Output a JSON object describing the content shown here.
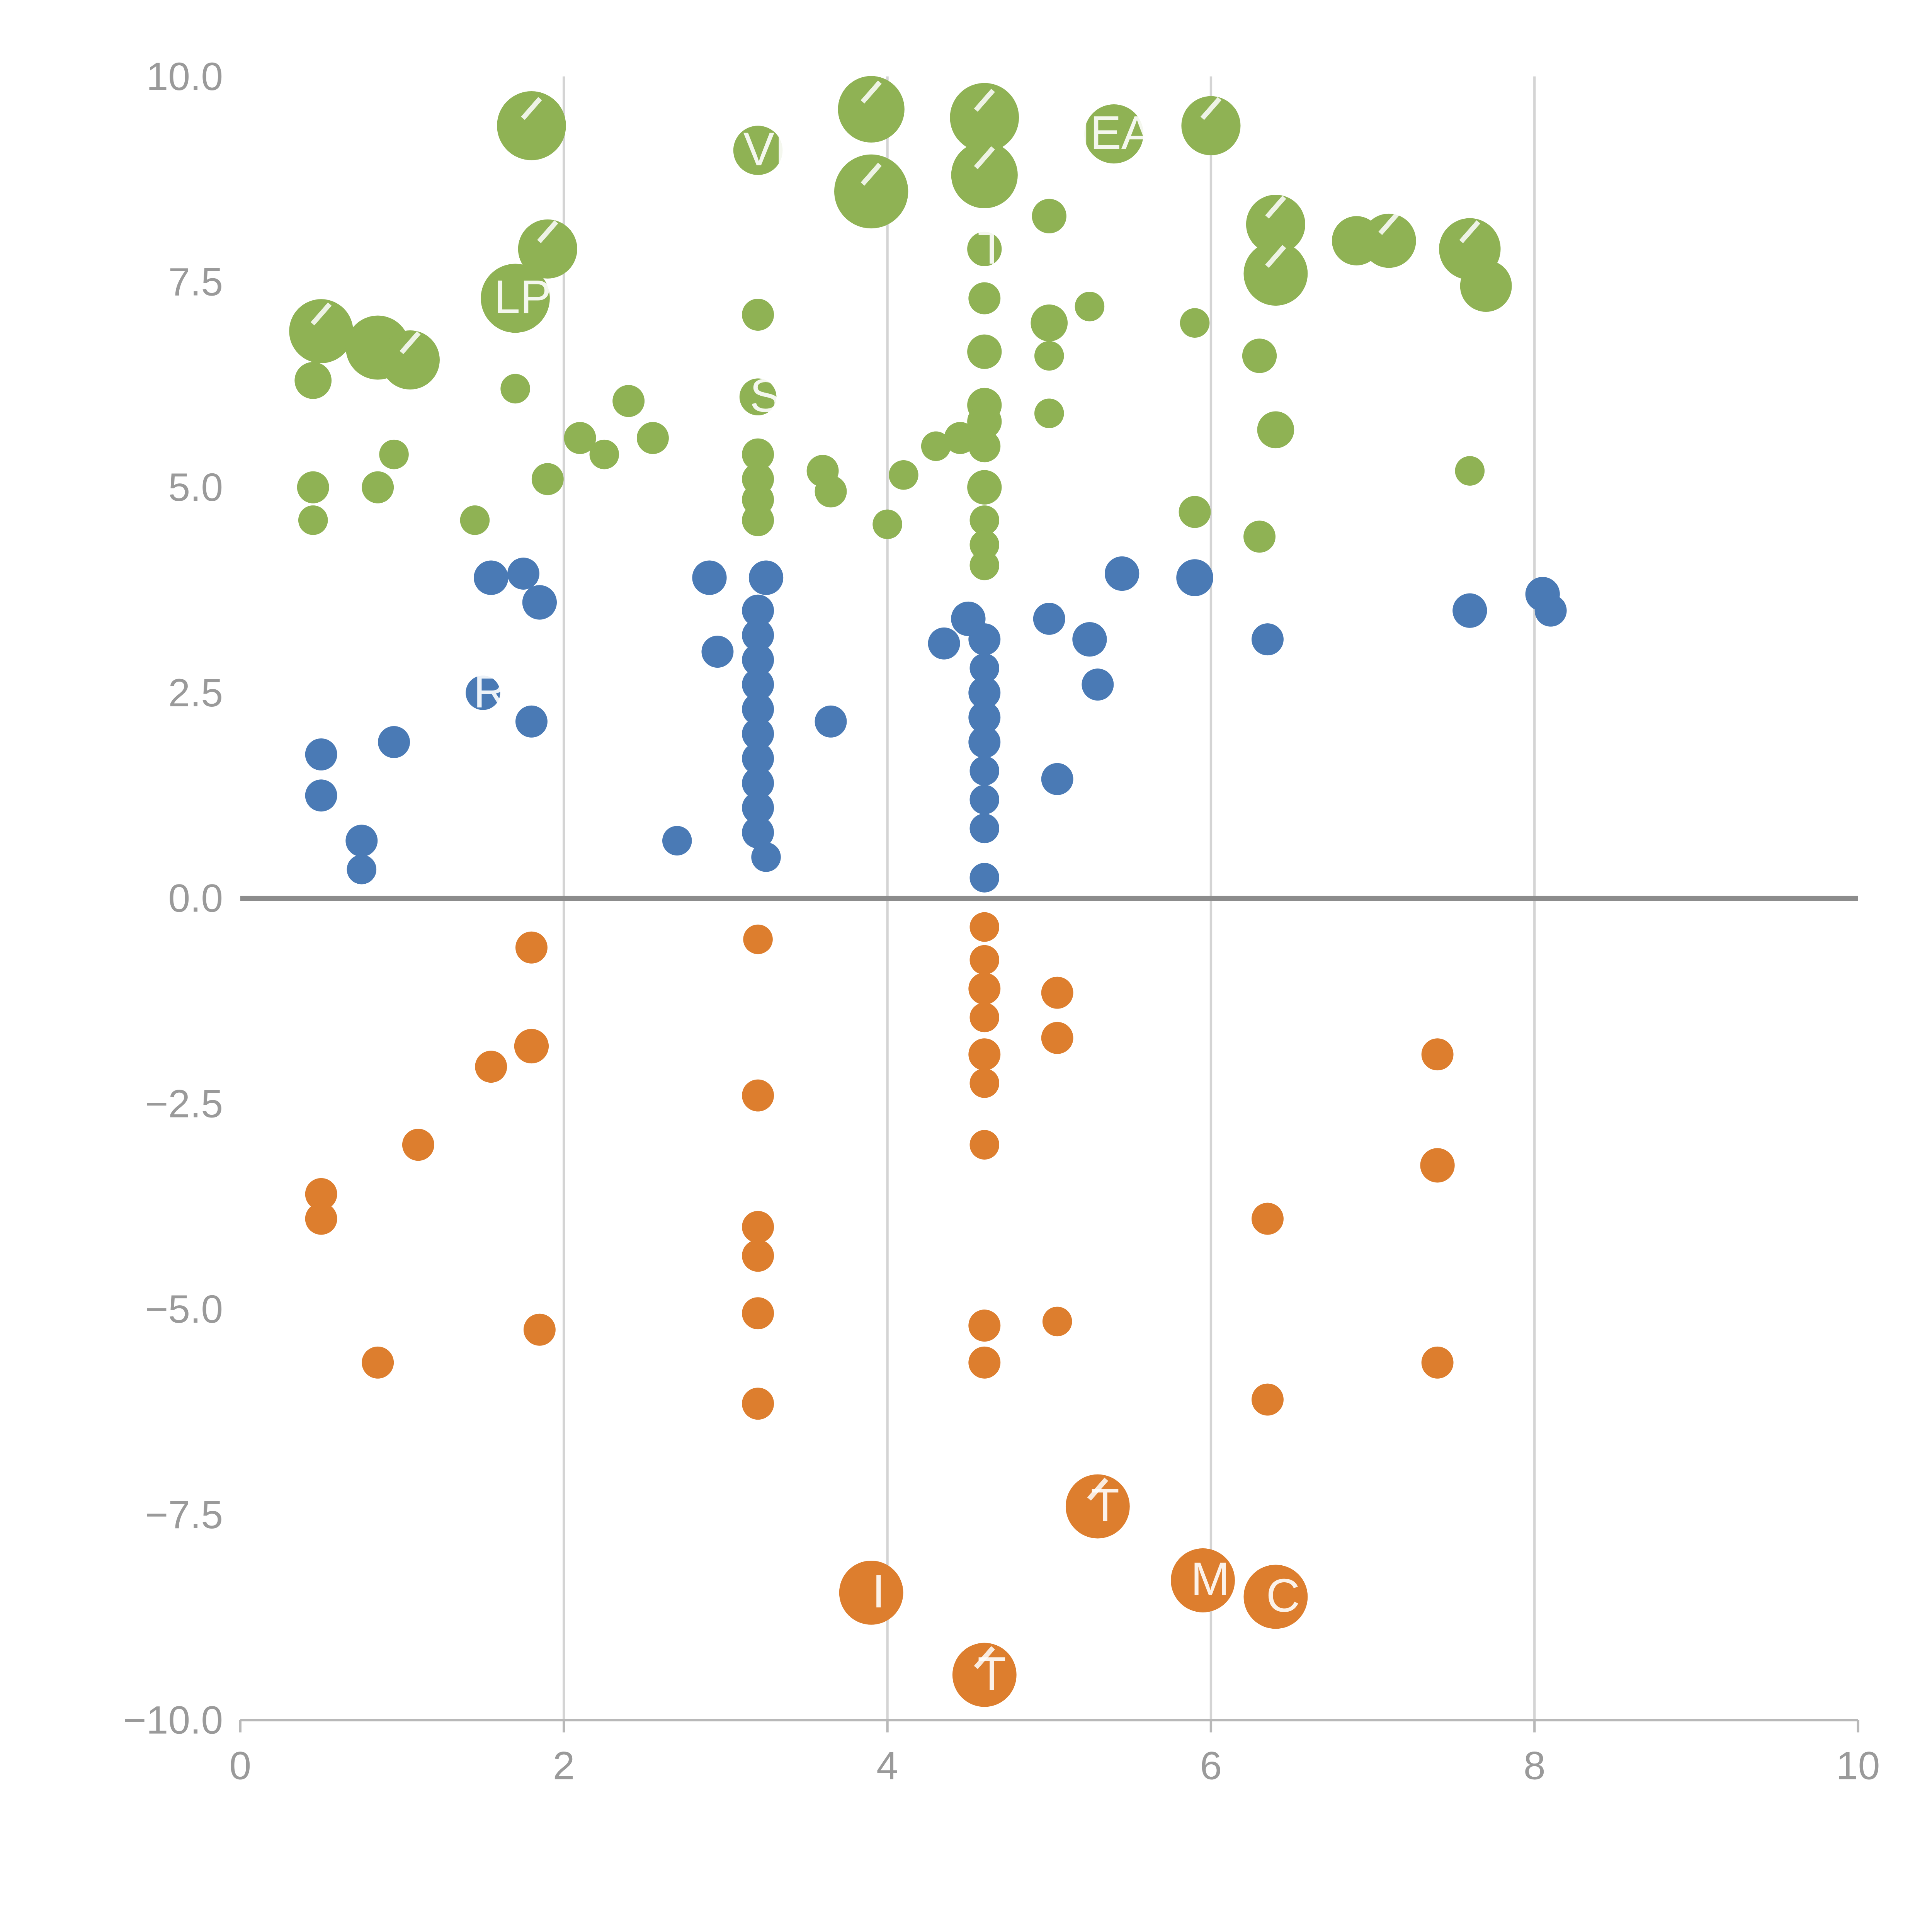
{
  "page": {
    "background": "#ffffff"
  },
  "chart_data": {
    "type": "scatter",
    "subtype": "bubble",
    "title": "",
    "xlabel": "",
    "ylabel": "",
    "xlim": [
      0,
      10
    ],
    "ylim": [
      -10,
      10
    ],
    "grid": true,
    "legend": "none",
    "zero_line_y": 0,
    "x_gridlines": [
      2,
      4,
      6,
      8
    ],
    "x_ticks": [
      {
        "v": 0,
        "t": "0"
      },
      {
        "v": 2,
        "t": "2"
      },
      {
        "v": 4,
        "t": "4"
      },
      {
        "v": 6,
        "t": "6"
      },
      {
        "v": 8,
        "t": "8"
      },
      {
        "v": 10,
        "t": "10"
      }
    ],
    "y_ticks": [
      {
        "v": 10,
        "t": "10.0"
      },
      {
        "v": 7.5,
        "t": "7.5"
      },
      {
        "v": 5,
        "t": "5.0"
      },
      {
        "v": 2.5,
        "t": "2.5"
      },
      {
        "v": 0,
        "t": "0.0"
      },
      {
        "v": -2.5,
        "t": "−2.5"
      },
      {
        "v": -5,
        "t": "−5.0"
      },
      {
        "v": -7.5,
        "t": "−7.5"
      },
      {
        "v": -10,
        "t": "−10.0"
      }
    ],
    "colors": {
      "grid": "#d4d4d4",
      "zero_line": "#8c8c8c",
      "axis_line": "#b8b8b8",
      "tick_label": "#9a9a9a",
      "bubble_label": "#ffffff",
      "series_green": "#8fb254",
      "series_blue": "#4a7ab5",
      "series_orange": "#dd7e2e"
    },
    "point_format": [
      "x",
      "y",
      "radius_px",
      "label",
      "leader_tick"
    ],
    "series": [
      {
        "name": "green",
        "color": "#8fb254",
        "points": [
          [
            1.8,
            9.4,
            28,
            "",
            1
          ],
          [
            3.2,
            9.1,
            20,
            "VI",
            0
          ],
          [
            3.9,
            9.6,
            27,
            "",
            1
          ],
          [
            3.9,
            8.6,
            30,
            "",
            1
          ],
          [
            4.6,
            9.5,
            28,
            "",
            1
          ],
          [
            4.6,
            8.8,
            27,
            "",
            1
          ],
          [
            5.0,
            8.3,
            14
          ],
          [
            5.4,
            9.3,
            24,
            "NEAR",
            0
          ],
          [
            6.0,
            9.4,
            24,
            "",
            1
          ],
          [
            6.4,
            8.2,
            24,
            "",
            1
          ],
          [
            6.4,
            7.6,
            26,
            "",
            1
          ],
          [
            6.9,
            8.0,
            20
          ],
          [
            7.1,
            8.0,
            22,
            "",
            1
          ],
          [
            7.6,
            7.9,
            25,
            "",
            1
          ],
          [
            7.7,
            7.45,
            21
          ],
          [
            1.9,
            7.9,
            24,
            "",
            1
          ],
          [
            1.7,
            7.3,
            28,
            "LP",
            0
          ],
          [
            3.2,
            7.1,
            13
          ],
          [
            4.6,
            7.9,
            14,
            "T",
            0
          ],
          [
            4.6,
            7.3,
            13
          ],
          [
            5.0,
            7.0,
            15
          ],
          [
            5.25,
            7.2,
            12
          ],
          [
            5.9,
            7.0,
            12
          ],
          [
            0.5,
            6.9,
            26,
            "",
            1
          ],
          [
            0.85,
            6.7,
            26
          ],
          [
            1.05,
            6.55,
            24,
            "",
            1
          ],
          [
            0.45,
            6.3,
            15
          ],
          [
            1.7,
            6.2,
            12
          ],
          [
            2.4,
            6.05,
            13
          ],
          [
            4.6,
            6.65,
            14
          ],
          [
            5.0,
            6.6,
            12
          ],
          [
            6.3,
            6.6,
            14
          ],
          [
            4.6,
            6.0,
            14
          ],
          [
            5.0,
            5.9,
            12
          ],
          [
            6.4,
            5.7,
            15
          ],
          [
            0.95,
            5.4,
            12
          ],
          [
            0.85,
            5.0,
            13
          ],
          [
            2.1,
            5.6,
            13
          ],
          [
            2.25,
            5.4,
            12
          ],
          [
            2.55,
            5.6,
            13
          ],
          [
            1.9,
            5.1,
            13
          ],
          [
            3.2,
            6.1,
            15,
            "S",
            0
          ],
          [
            3.2,
            5.4,
            13
          ],
          [
            3.2,
            5.1,
            13
          ],
          [
            3.2,
            4.85,
            13
          ],
          [
            3.2,
            4.6,
            13
          ],
          [
            3.6,
            5.2,
            13
          ],
          [
            3.65,
            4.95,
            13
          ],
          [
            4.1,
            5.15,
            12
          ],
          [
            4.3,
            5.5,
            12
          ],
          [
            4.45,
            5.6,
            13
          ],
          [
            4.6,
            5.8,
            14
          ],
          [
            4.6,
            5.5,
            13
          ],
          [
            4.0,
            4.55,
            12
          ],
          [
            4.6,
            5.0,
            14
          ],
          [
            4.6,
            4.6,
            12
          ],
          [
            4.6,
            4.3,
            12
          ],
          [
            4.6,
            4.05,
            12
          ],
          [
            5.9,
            4.7,
            13
          ],
          [
            6.3,
            4.4,
            13
          ],
          [
            0.45,
            5.0,
            13
          ],
          [
            0.45,
            4.6,
            12
          ],
          [
            1.45,
            4.6,
            12
          ],
          [
            7.6,
            5.2,
            12
          ]
        ]
      },
      {
        "name": "blue",
        "color": "#4a7ab5",
        "points": [
          [
            1.55,
            3.9,
            14
          ],
          [
            1.75,
            3.95,
            13
          ],
          [
            1.85,
            3.6,
            14
          ],
          [
            2.9,
            3.9,
            14
          ],
          [
            3.25,
            3.9,
            14
          ],
          [
            2.95,
            3.0,
            13
          ],
          [
            3.2,
            3.5,
            13
          ],
          [
            3.2,
            3.2,
            13
          ],
          [
            3.2,
            2.9,
            13
          ],
          [
            3.2,
            2.6,
            13
          ],
          [
            3.2,
            2.3,
            13
          ],
          [
            3.2,
            2.0,
            13
          ],
          [
            3.2,
            1.7,
            13
          ],
          [
            3.2,
            1.4,
            13
          ],
          [
            3.2,
            1.1,
            13
          ],
          [
            3.2,
            0.8,
            13
          ],
          [
            3.25,
            0.5,
            12
          ],
          [
            2.7,
            0.7,
            12
          ],
          [
            3.65,
            2.15,
            13
          ],
          [
            4.35,
            3.1,
            13
          ],
          [
            4.5,
            3.4,
            14
          ],
          [
            4.6,
            3.15,
            13
          ],
          [
            4.6,
            2.8,
            12
          ],
          [
            4.6,
            2.5,
            13
          ],
          [
            4.6,
            2.2,
            13
          ],
          [
            4.6,
            1.9,
            13
          ],
          [
            4.6,
            1.55,
            12
          ],
          [
            4.6,
            1.2,
            12
          ],
          [
            4.6,
            0.85,
            12
          ],
          [
            4.6,
            0.25,
            12
          ],
          [
            5.0,
            3.4,
            13
          ],
          [
            5.05,
            1.45,
            13
          ],
          [
            5.25,
            3.15,
            14
          ],
          [
            5.3,
            2.6,
            13
          ],
          [
            5.45,
            3.95,
            14
          ],
          [
            5.9,
            3.9,
            15
          ],
          [
            6.35,
            3.15,
            13
          ],
          [
            7.6,
            3.5,
            14
          ],
          [
            8.05,
            3.7,
            14
          ],
          [
            8.1,
            3.5,
            13
          ],
          [
            1.5,
            2.5,
            14,
            "R",
            0
          ],
          [
            1.8,
            2.15,
            13
          ],
          [
            0.95,
            1.9,
            13
          ],
          [
            0.5,
            1.75,
            13
          ],
          [
            0.5,
            1.25,
            13
          ],
          [
            0.75,
            0.7,
            13
          ],
          [
            0.75,
            0.35,
            12
          ]
        ]
      },
      {
        "name": "orange",
        "color": "#dd7e2e",
        "points": [
          [
            1.8,
            -0.6,
            13
          ],
          [
            3.2,
            -0.5,
            12
          ],
          [
            4.6,
            -0.35,
            12
          ],
          [
            4.6,
            -0.75,
            12
          ],
          [
            4.6,
            -1.1,
            13
          ],
          [
            4.6,
            -1.45,
            12
          ],
          [
            5.05,
            -1.15,
            13
          ],
          [
            5.05,
            -1.7,
            13
          ],
          [
            4.6,
            -1.9,
            13
          ],
          [
            4.6,
            -2.25,
            12
          ],
          [
            1.55,
            -2.05,
            13
          ],
          [
            1.8,
            -1.8,
            14
          ],
          [
            3.2,
            -2.4,
            13
          ],
          [
            4.6,
            -3.0,
            12
          ],
          [
            1.1,
            -3.0,
            13
          ],
          [
            7.4,
            -1.9,
            13
          ],
          [
            7.4,
            -3.25,
            14
          ],
          [
            0.5,
            -3.6,
            13
          ],
          [
            0.5,
            -3.9,
            13
          ],
          [
            3.2,
            -4.0,
            13
          ],
          [
            3.2,
            -4.35,
            13
          ],
          [
            6.35,
            -3.9,
            13
          ],
          [
            3.2,
            -5.05,
            13
          ],
          [
            1.85,
            -5.25,
            13
          ],
          [
            4.6,
            -5.2,
            13
          ],
          [
            5.05,
            -5.15,
            12
          ],
          [
            4.6,
            -5.65,
            13
          ],
          [
            0.85,
            -5.65,
            13
          ],
          [
            7.4,
            -5.65,
            13
          ],
          [
            3.2,
            -6.15,
            13
          ],
          [
            6.35,
            -6.1,
            13
          ],
          [
            5.3,
            -7.4,
            26,
            "T",
            1
          ],
          [
            5.95,
            -8.3,
            26,
            "M",
            0
          ],
          [
            6.4,
            -8.5,
            26,
            "C",
            0
          ],
          [
            3.9,
            -8.45,
            26,
            "I",
            0
          ],
          [
            4.6,
            -9.45,
            26,
            "T",
            1
          ]
        ]
      }
    ]
  }
}
